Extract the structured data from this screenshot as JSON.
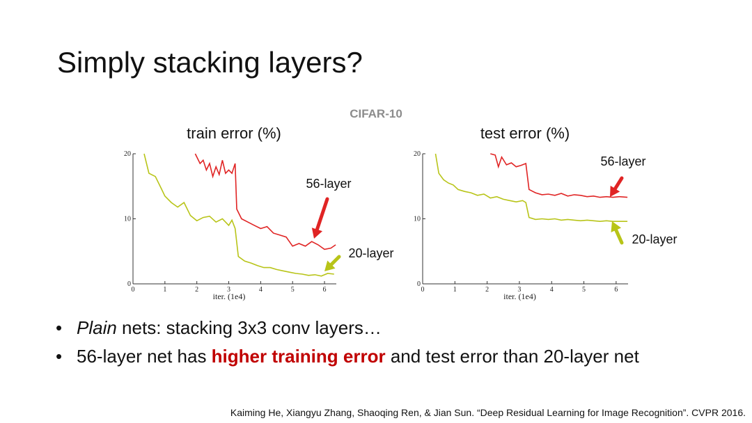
{
  "title": "Simply stacking layers?",
  "subtitle": "CIFAR-10",
  "bullets": [
    [
      "Plain",
      " nets: stacking 3x3 conv layers…"
    ],
    [
      "56-layer net has ",
      "higher training error",
      " and test error than 20-layer net"
    ]
  ],
  "citation": "Kaiming He, Xiangyu Zhang, Shaoqing Ren, & Jian Sun. “Deep Residual Learning for Image Recognition”. CVPR 2016.",
  "chart_data": [
    {
      "type": "line",
      "title": "train error (%)",
      "x_label": "iter. (1e4)",
      "xlim": [
        0,
        6.37
      ],
      "ylim": [
        0,
        20
      ],
      "xticks": [
        0,
        1,
        2,
        3,
        4,
        5,
        6
      ],
      "yticks": [
        0,
        10,
        20
      ],
      "series": [
        {
          "name": "56-layer",
          "color": "#e02424",
          "x": [
            1.95,
            2.1,
            2.2,
            2.3,
            2.4,
            2.5,
            2.6,
            2.7,
            2.8,
            2.9,
            3.0,
            3.1,
            3.2,
            3.25,
            3.4,
            3.6,
            3.8,
            4.0,
            4.2,
            4.4,
            4.6,
            4.8,
            5.0,
            5.2,
            5.4,
            5.6,
            5.8,
            6.0,
            6.2,
            6.35
          ],
          "values": [
            20,
            18.5,
            19,
            17.5,
            18.5,
            16.5,
            18,
            16.8,
            19,
            17,
            17.5,
            17,
            18.5,
            11.5,
            10,
            9.5,
            9,
            8.5,
            8.8,
            7.8,
            7.5,
            7.2,
            5.8,
            6.2,
            5.8,
            6.5,
            6,
            5.3,
            5.5,
            6
          ]
        },
        {
          "name": "20-layer",
          "color": "#b8c418",
          "x": [
            0.35,
            0.5,
            0.7,
            0.9,
            1.0,
            1.2,
            1.4,
            1.6,
            1.8,
            2.0,
            2.2,
            2.4,
            2.6,
            2.8,
            3.0,
            3.1,
            3.2,
            3.3,
            3.5,
            3.7,
            3.9,
            4.1,
            4.3,
            4.5,
            4.7,
            4.9,
            5.1,
            5.3,
            5.5,
            5.7,
            5.9,
            6.1,
            6.3
          ],
          "values": [
            20,
            17,
            16.5,
            14.5,
            13.5,
            12.5,
            11.8,
            12.5,
            10.5,
            9.7,
            10.2,
            10.4,
            9.5,
            10,
            9,
            9.8,
            8.5,
            4.2,
            3.5,
            3.2,
            2.8,
            2.5,
            2.5,
            2.2,
            2,
            1.8,
            1.6,
            1.5,
            1.3,
            1.4,
            1.2,
            1.6,
            1.5
          ]
        }
      ]
    },
    {
      "type": "line",
      "title": "test error (%)",
      "x_label": "iter. (1e4)",
      "xlim": [
        0,
        6.37
      ],
      "ylim": [
        0,
        20
      ],
      "xticks": [
        0,
        1,
        2,
        3,
        4,
        5,
        6
      ],
      "yticks": [
        0,
        10,
        20
      ],
      "series": [
        {
          "name": "56-layer",
          "color": "#e02424",
          "x": [
            2.1,
            2.25,
            2.35,
            2.45,
            2.6,
            2.75,
            2.9,
            3.05,
            3.2,
            3.3,
            3.5,
            3.7,
            3.9,
            4.1,
            4.3,
            4.5,
            4.7,
            4.9,
            5.1,
            5.3,
            5.5,
            5.7,
            5.9,
            6.1,
            6.35
          ],
          "values": [
            20,
            19.8,
            18,
            19.5,
            18.3,
            18.6,
            18,
            18.2,
            18.5,
            14.5,
            14,
            13.7,
            13.8,
            13.6,
            13.9,
            13.5,
            13.7,
            13.6,
            13.4,
            13.5,
            13.3,
            13.4,
            13.3,
            13.4,
            13.3
          ]
        },
        {
          "name": "20-layer",
          "color": "#b8c418",
          "x": [
            0.4,
            0.5,
            0.65,
            0.8,
            0.95,
            1.1,
            1.3,
            1.5,
            1.7,
            1.9,
            2.1,
            2.3,
            2.5,
            2.7,
            2.9,
            3.1,
            3.2,
            3.3,
            3.5,
            3.7,
            3.9,
            4.1,
            4.3,
            4.5,
            4.7,
            4.9,
            5.1,
            5.3,
            5.5,
            5.7,
            5.9,
            6.1,
            6.35
          ],
          "values": [
            20,
            17,
            16,
            15.5,
            15.2,
            14.5,
            14.2,
            14,
            13.6,
            13.8,
            13.2,
            13.4,
            13,
            12.8,
            12.6,
            12.8,
            12.5,
            10.2,
            9.9,
            10,
            9.9,
            10,
            9.8,
            9.9,
            9.8,
            9.7,
            9.8,
            9.7,
            9.6,
            9.7,
            9.6,
            9.6,
            9.6
          ]
        }
      ]
    }
  ]
}
